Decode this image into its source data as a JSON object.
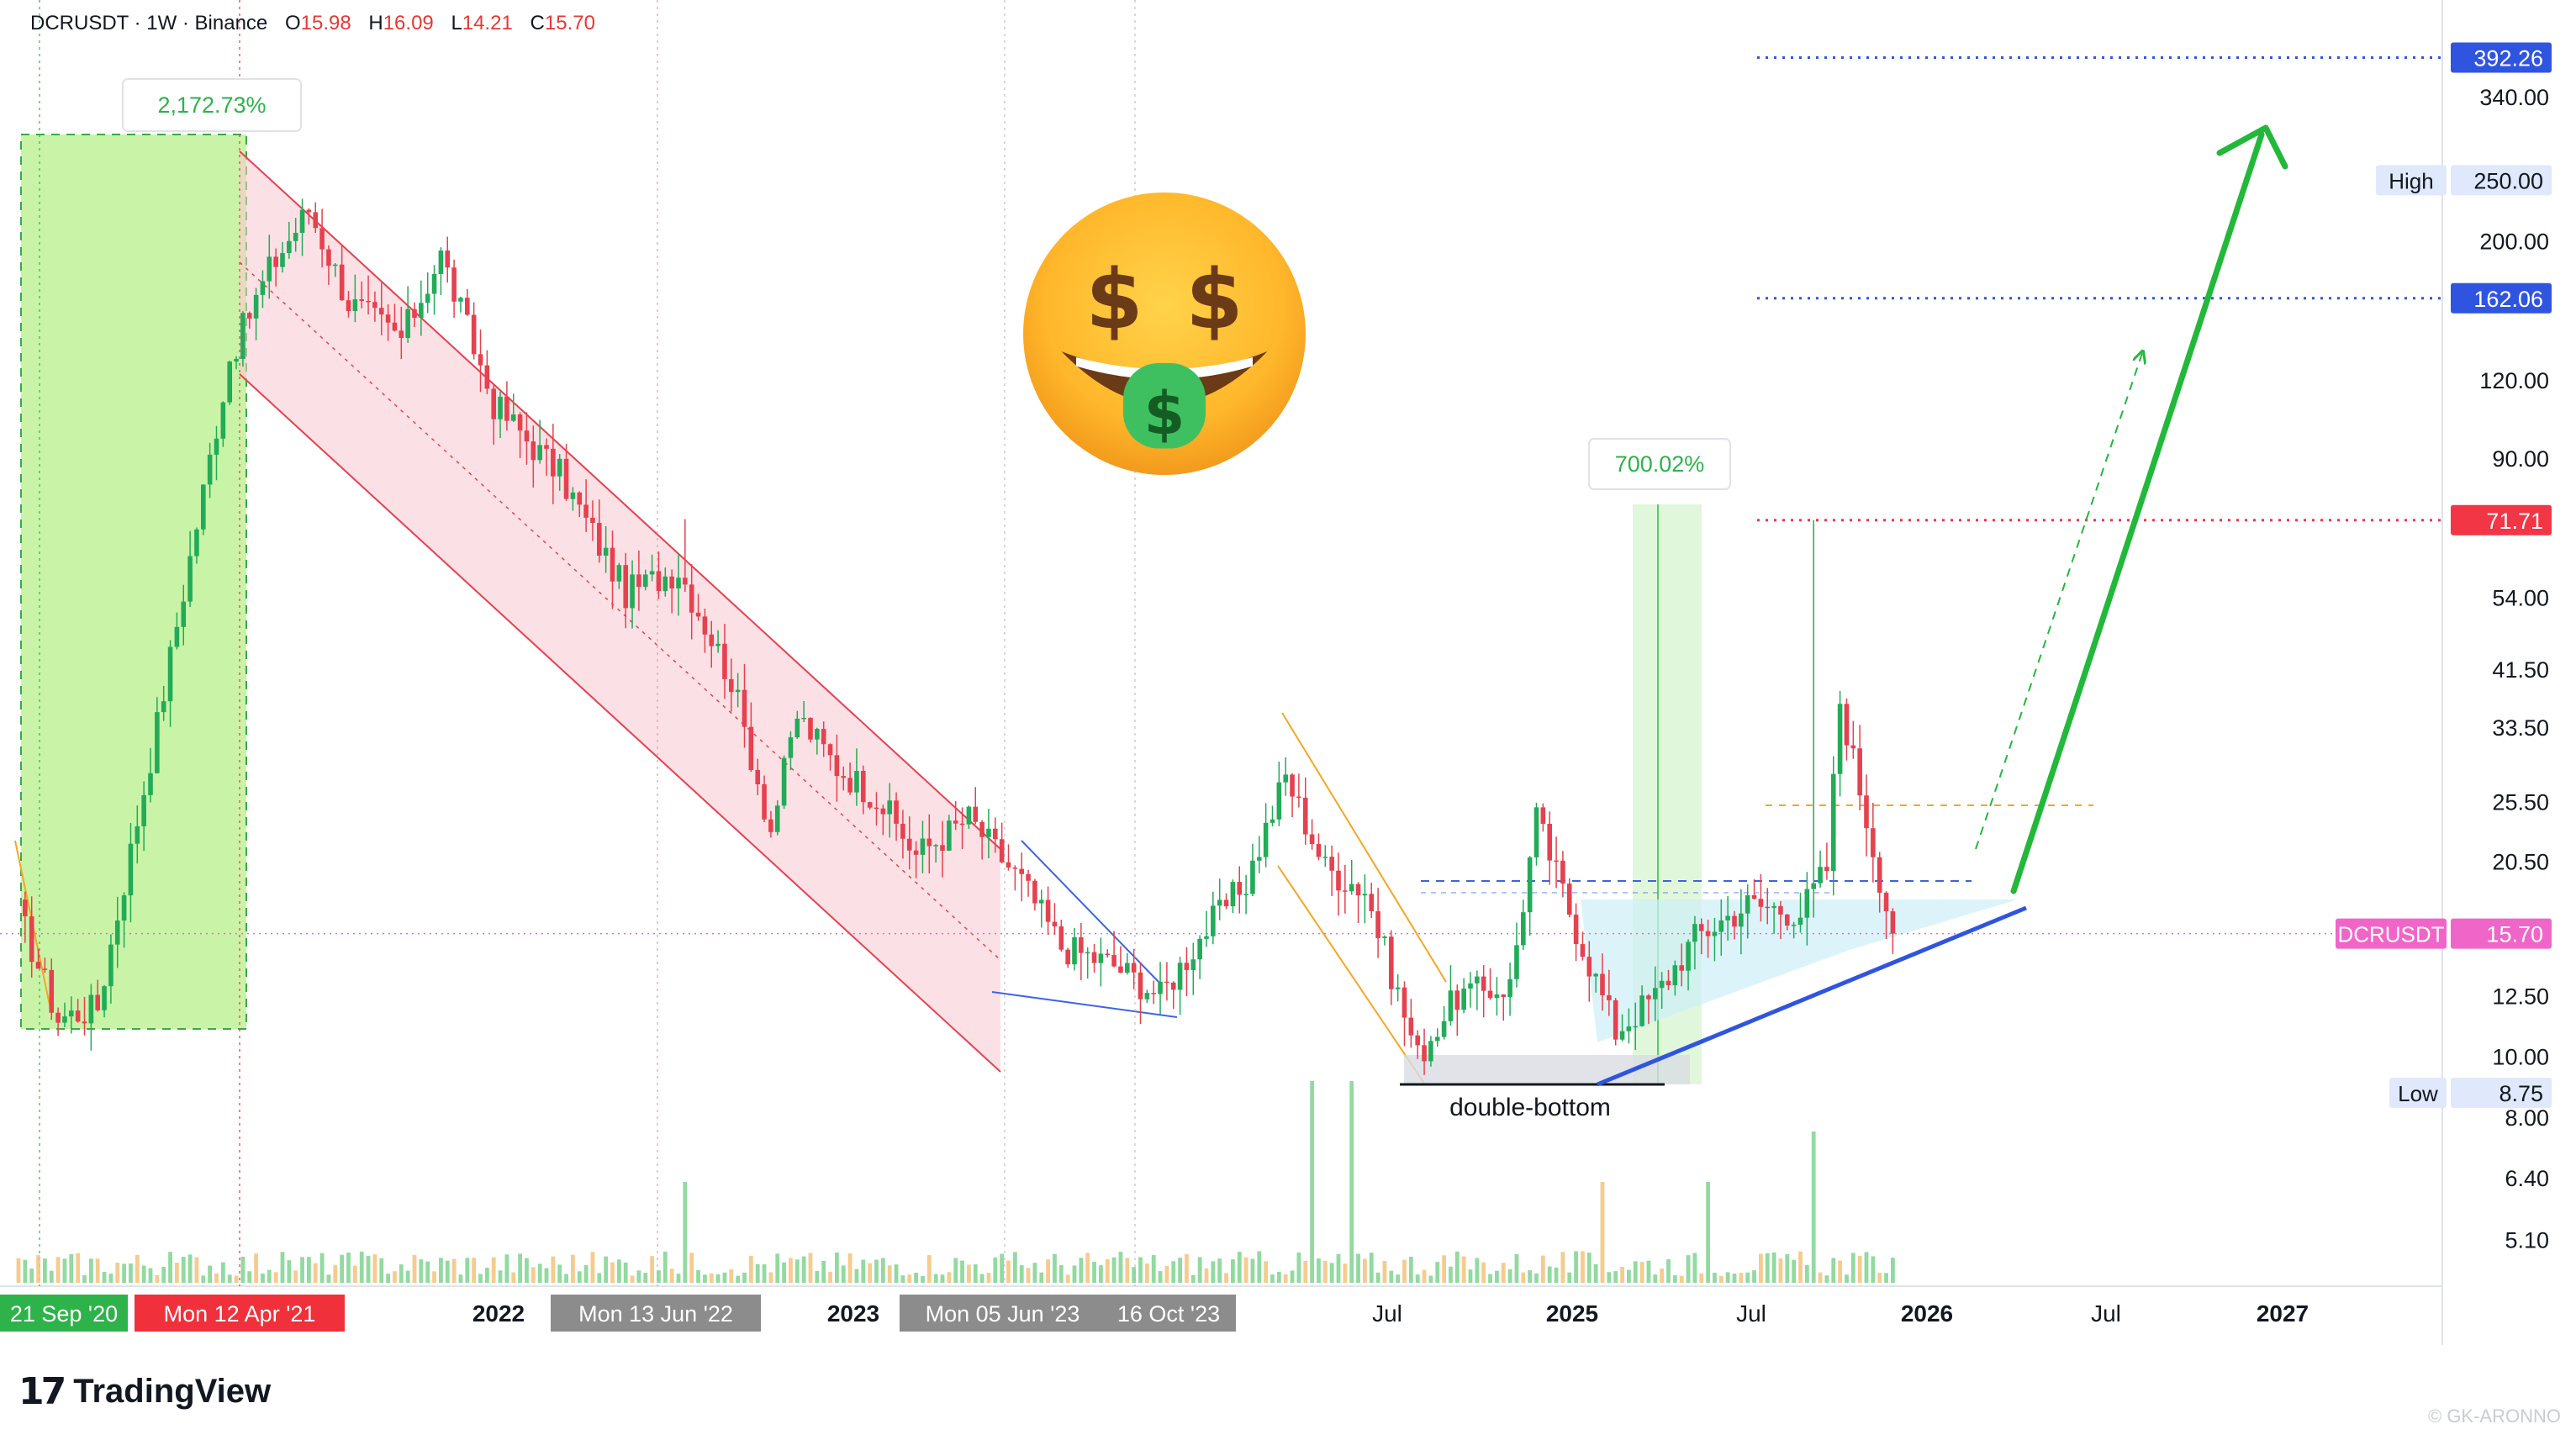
{
  "header": {
    "symbol": "DCRUSDT · 1W · Binance",
    "o_label": "O",
    "o": "15.98",
    "h_label": "H",
    "h": "16.09",
    "l_label": "L",
    "l": "14.21",
    "c_label": "C",
    "c": "15.70"
  },
  "branding": {
    "logo_mark": "17",
    "logo_text": "TradingView",
    "watermark": "© GK-ARONNO"
  },
  "emoji": {
    "icon": "money-mouth-face-icon"
  },
  "chart_data": {
    "type": "candlestick",
    "symbol": "DCRUSDT",
    "interval": "1W",
    "exchange": "Binance",
    "y_scale": "log",
    "ylim": [
      4.3,
      470
    ],
    "y_ticks": [
      "340.00",
      "200.00",
      "120.00",
      "90.00",
      "54.00",
      "41.50",
      "33.50",
      "25.50",
      "20.50",
      "12.50",
      "10.00",
      "8.00",
      "6.40",
      "5.10"
    ],
    "x_ticks": [
      "2022",
      "2023",
      "Jul",
      "2025",
      "Jul",
      "2026",
      "Jul",
      "2027"
    ],
    "x_highlight_labels": [
      {
        "text": "21 Sep '20",
        "color": "#2db34a"
      },
      {
        "text": "Mon 12 Apr '21",
        "color": "#f0303a"
      },
      {
        "text": "Mon 13 Jun '22",
        "color": "#8c8c8c"
      },
      {
        "text": "Mon 05 Jun '23",
        "color": "#8c8c8c"
      },
      {
        "text": "16 Oct '23",
        "color": "#8c8c8c"
      }
    ],
    "price_labels": [
      {
        "text": "392.26",
        "value": 392.26,
        "bg": "#2f55e0"
      },
      {
        "text": "250.00",
        "value": 250,
        "tag": "High",
        "bg": "#dfe9fb"
      },
      {
        "text": "162.06",
        "value": 162.06,
        "bg": "#2f55e0"
      },
      {
        "text": "71.71",
        "value": 71.71,
        "bg": "#f23645"
      },
      {
        "text": "15.70",
        "value": 15.7,
        "tag": "DCRUSDT",
        "bg": "#f066c8"
      },
      {
        "text": "8.75",
        "value": 8.75,
        "tag": "Low",
        "bg": "#dfe9fb"
      }
    ],
    "annotations": [
      {
        "text": "2,172.73%",
        "kind": "measure",
        "color": "#2db34a"
      },
      {
        "text": "700.02%",
        "kind": "measure",
        "color": "#2db34a"
      },
      {
        "text": "double-bottom",
        "kind": "label",
        "color": "#131722"
      }
    ],
    "anchors": [
      {
        "t": 0,
        "v": 17
      },
      {
        "t": 6,
        "v": 11.5
      },
      {
        "t": 12,
        "v": 12
      },
      {
        "t": 20,
        "v": 30
      },
      {
        "t": 32,
        "v": 130
      },
      {
        "t": 38,
        "v": 180
      },
      {
        "t": 44,
        "v": 225
      },
      {
        "t": 50,
        "v": 160
      },
      {
        "t": 58,
        "v": 140
      },
      {
        "t": 64,
        "v": 190
      },
      {
        "t": 72,
        "v": 110
      },
      {
        "t": 82,
        "v": 85
      },
      {
        "t": 92,
        "v": 55
      },
      {
        "t": 100,
        "v": 60
      },
      {
        "t": 108,
        "v": 40
      },
      {
        "t": 114,
        "v": 23
      },
      {
        "t": 118,
        "v": 35
      },
      {
        "t": 124,
        "v": 29
      },
      {
        "t": 130,
        "v": 26
      },
      {
        "t": 136,
        "v": 21
      },
      {
        "t": 144,
        "v": 24
      },
      {
        "t": 152,
        "v": 19
      },
      {
        "t": 158,
        "v": 15
      },
      {
        "t": 166,
        "v": 14
      },
      {
        "t": 173,
        "v": 12.5
      },
      {
        "t": 180,
        "v": 16
      },
      {
        "t": 186,
        "v": 19
      },
      {
        "t": 192,
        "v": 28
      },
      {
        "t": 198,
        "v": 20
      },
      {
        "t": 204,
        "v": 18.5
      },
      {
        "t": 212,
        "v": 10
      },
      {
        "t": 218,
        "v": 12.5
      },
      {
        "t": 226,
        "v": 13
      },
      {
        "t": 230,
        "v": 24
      },
      {
        "t": 236,
        "v": 16
      },
      {
        "t": 242,
        "v": 11
      },
      {
        "t": 248,
        "v": 12.5
      },
      {
        "t": 254,
        "v": 15.5
      },
      {
        "t": 262,
        "v": 17.5
      },
      {
        "t": 270,
        "v": 17
      },
      {
        "t": 274,
        "v": 20
      },
      {
        "t": 276,
        "v": 37
      },
      {
        "t": 280,
        "v": 24
      },
      {
        "t": 284,
        "v": 15.7
      }
    ],
    "note_series": "weekly closes approximated from the log price axis",
    "spikes": [
      {
        "t": 101,
        "high": 72
      },
      {
        "t": 272,
        "high": 71.71
      }
    ]
  }
}
